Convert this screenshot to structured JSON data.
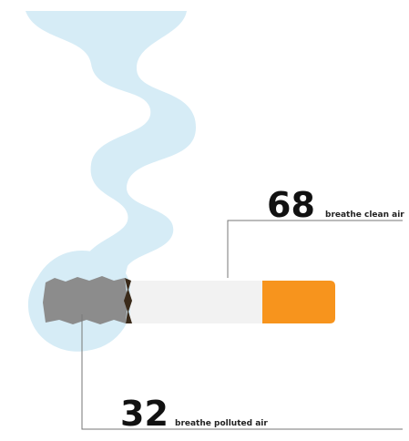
{
  "callouts": [
    {
      "value": 68,
      "label": "breathe clean air"
    },
    {
      "value": 32,
      "label": "breathe polluted air"
    }
  ]
}
